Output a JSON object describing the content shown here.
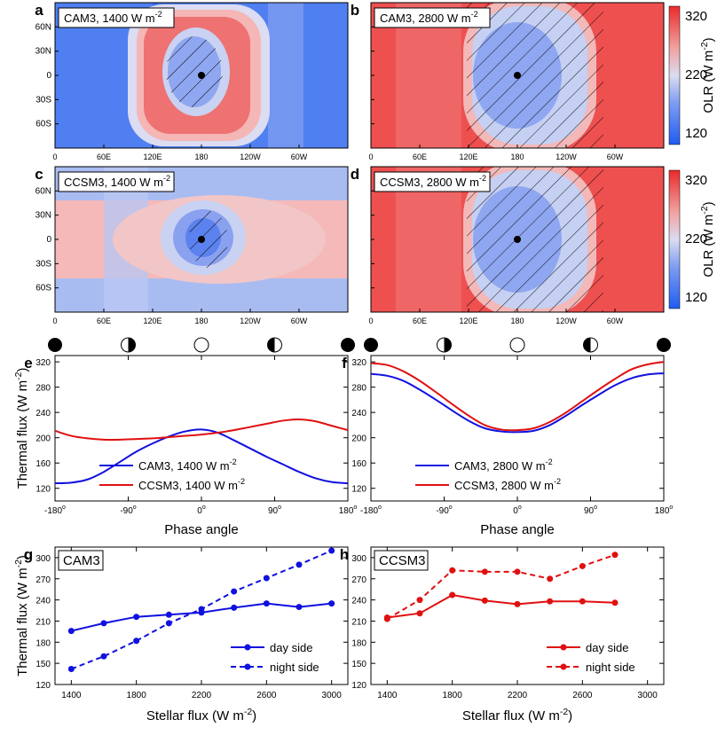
{
  "maps": {
    "panels": [
      {
        "id": "a",
        "label": "CAM3, 1400 W m",
        "exp": "-2",
        "regime": "cool_cam"
      },
      {
        "id": "b",
        "label": "CAM3, 2800 W m",
        "exp": "-2",
        "regime": "hot"
      },
      {
        "id": "c",
        "label": "CCSM3, 1400 W m",
        "exp": "-2",
        "regime": "cool_ccsm"
      },
      {
        "id": "d",
        "label": "CCSM3, 2800 W m",
        "exp": "-2",
        "regime": "hot"
      }
    ],
    "lat_ticks": [
      "60N",
      "30N",
      "0",
      "30S",
      "60S"
    ],
    "lon_ticks": [
      "0",
      "60E",
      "120E",
      "180",
      "120W",
      "60W"
    ],
    "colorbar": {
      "ticks": [
        "320",
        "220",
        "120"
      ],
      "label": "OLR (W m",
      "label_exp": "-2",
      "label_end": ")",
      "min": 120,
      "max": 320
    }
  },
  "chart_data": [
    {
      "id": "e",
      "type": "line",
      "xlabel": "Phase angle",
      "ylabel": "Thermal flux (W m",
      "ylabel_exp": "-2",
      "ylabel_end": ")",
      "xlim": [
        -180,
        180
      ],
      "ylim": [
        100,
        330
      ],
      "x_ticks": [
        "-180",
        "-90",
        "0",
        "90",
        "180"
      ],
      "y_ticks": [
        "120",
        "160",
        "200",
        "240",
        "280",
        "320"
      ],
      "x": [
        -180,
        -160,
        -140,
        -120,
        -100,
        -80,
        -60,
        -40,
        -20,
        0,
        20,
        40,
        60,
        80,
        100,
        120,
        140,
        160,
        180
      ],
      "series": [
        {
          "name": "CAM3, 1400 W m",
          "name_exp": "-2",
          "color": "#1010e0",
          "values": [
            128,
            129,
            134,
            146,
            162,
            178,
            191,
            202,
            210,
            213,
            208,
            196,
            183,
            170,
            158,
            146,
            136,
            130,
            128
          ]
        },
        {
          "name": "CCSM3, 1400 W m",
          "name_exp": "-2",
          "color": "#e01010",
          "values": [
            211,
            203,
            199,
            197,
            197,
            198,
            199,
            201,
            203,
            205,
            208,
            212,
            217,
            222,
            227,
            229,
            226,
            219,
            212
          ]
        }
      ]
    },
    {
      "id": "f",
      "type": "line",
      "xlabel": "Phase angle",
      "ylabel": "",
      "xlim": [
        -180,
        180
      ],
      "ylim": [
        100,
        330
      ],
      "x_ticks": [
        "-180",
        "-90",
        "0",
        "90",
        "180"
      ],
      "y_ticks": [
        "120",
        "160",
        "200",
        "240",
        "280",
        "320"
      ],
      "x": [
        -180,
        -160,
        -140,
        -120,
        -100,
        -80,
        -60,
        -40,
        -20,
        0,
        20,
        40,
        60,
        80,
        100,
        120,
        140,
        160,
        180
      ],
      "series": [
        {
          "name": "CAM3, 2800 W m",
          "name_exp": "-2",
          "color": "#1010e0",
          "values": [
            301,
            298,
            290,
            276,
            260,
            243,
            227,
            215,
            210,
            209,
            211,
            220,
            235,
            252,
            268,
            283,
            294,
            300,
            302
          ]
        },
        {
          "name": "CCSM3, 2800 W m",
          "name_exp": "-2",
          "color": "#e01010",
          "values": [
            318,
            315,
            305,
            290,
            272,
            253,
            235,
            220,
            213,
            212,
            215,
            225,
            240,
            258,
            276,
            293,
            308,
            316,
            320
          ]
        }
      ]
    },
    {
      "id": "g",
      "type": "line",
      "title": "CAM3",
      "xlabel": "Stellar flux (W m",
      "xlabel_exp": "-2",
      "xlabel_end": ")",
      "ylabel": "Thermal flux (W m",
      "ylabel_exp": "-2",
      "ylabel_end": ")",
      "xlim": [
        1300,
        3100
      ],
      "ylim": [
        120,
        315
      ],
      "x_ticks": [
        "1400",
        "1800",
        "2200",
        "2600",
        "3000"
      ],
      "y_ticks": [
        "120",
        "150",
        "180",
        "210",
        "240",
        "270",
        "300"
      ],
      "x": [
        1400,
        1600,
        1800,
        2000,
        2200,
        2400,
        2600,
        2800,
        3000
      ],
      "series": [
        {
          "name": "day side",
          "color": "#1010e0",
          "dashed": false,
          "values": [
            196,
            207,
            216,
            219,
            222,
            229,
            235,
            230,
            235
          ]
        },
        {
          "name": "night side",
          "color": "#1010e0",
          "dashed": true,
          "values": [
            142,
            160,
            182,
            207,
            227,
            252,
            271,
            290,
            310
          ]
        }
      ]
    },
    {
      "id": "h",
      "type": "line",
      "title": "CCSM3",
      "xlabel": "Stellar flux (W m",
      "xlabel_exp": "-2",
      "xlabel_end": ")",
      "ylabel": "",
      "xlim": [
        1300,
        3100
      ],
      "ylim": [
        120,
        315
      ],
      "x_ticks": [
        "1400",
        "1800",
        "2200",
        "2600",
        "3000"
      ],
      "y_ticks": [
        "120",
        "150",
        "180",
        "210",
        "240",
        "270",
        "300"
      ],
      "x": [
        1400,
        1600,
        1800,
        2000,
        2200,
        2400,
        2600,
        2800
      ],
      "series": [
        {
          "name": "day side",
          "color": "#e01010",
          "dashed": false,
          "values": [
            215,
            221,
            247,
            239,
            234,
            238,
            238,
            236
          ]
        },
        {
          "name": "night side",
          "color": "#e01010",
          "dashed": true,
          "values": [
            213,
            240,
            282,
            280,
            280,
            270,
            288,
            304
          ]
        }
      ]
    }
  ]
}
